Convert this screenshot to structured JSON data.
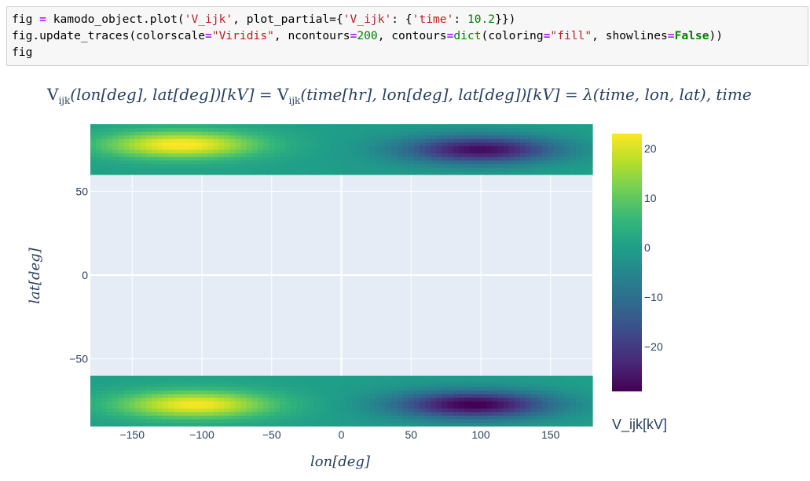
{
  "code_cell": {
    "line1": {
      "a": "fig",
      "b": " = ",
      "c": "kamodo_object.plot(",
      "d": "'V_ijk'",
      "e": ", plot_partial={",
      "f": "'V_ijk'",
      "g": ": {",
      "h": "'time'",
      "i": ": ",
      "j": "10.2",
      "k": "}})"
    },
    "line2": {
      "a": "fig.update_traces(colorscale",
      "b": "=",
      "c": "\"Viridis\"",
      "d": ", ncontours",
      "e": "=",
      "f": "200",
      "g": ", contours",
      "h": "=",
      "i": "dict",
      "j": "(coloring",
      "k": "=",
      "l": "\"fill\"",
      "m": ", showlines",
      "n": "=",
      "o": "False",
      "p": "))"
    },
    "line3": "fig"
  },
  "chart_data": {
    "type": "heatmap",
    "title": {
      "lhs_name": "V",
      "lhs_sub": "ijk",
      "lhs_args": "(lon[deg], lat[deg])[kV]",
      "eq1": " = ",
      "rhs_name": "V",
      "rhs_sub": "ijk",
      "rhs_args": "(time[hr], lon[deg], lat[deg])[kV]",
      "eq2": " = ",
      "lambda": "λ(time, lon, lat), time"
    },
    "xlabel": "lon[deg]",
    "ylabel": "lat[deg]",
    "xlim": [
      -180,
      180
    ],
    "ylim": [
      -90,
      90
    ],
    "x_ticks": [
      -150,
      -100,
      -50,
      0,
      50,
      100,
      150
    ],
    "x_tick_labels": [
      "−150",
      "−100",
      "−50",
      "0",
      "50",
      "100",
      "150"
    ],
    "y_ticks": [
      50,
      0,
      -50
    ],
    "y_tick_labels": [
      "50",
      "0",
      "−50"
    ],
    "data_bands_lat": [
      [
        60,
        90
      ],
      [
        -90,
        -60
      ]
    ],
    "colorscale": "Viridis",
    "colorscale_stops": [
      "#440154",
      "#482878",
      "#3e4989",
      "#31688e",
      "#26828e",
      "#1f9e89",
      "#35b779",
      "#6ece58",
      "#b5de2b",
      "#fde725"
    ],
    "zmin": -29,
    "zmax": 23,
    "colorbar_ticks": [
      20,
      10,
      0,
      -10,
      -20
    ],
    "colorbar_tick_labels": [
      "20",
      "10",
      "0",
      "−10",
      "−20"
    ],
    "colorbar_title": "V_ijk[kV]",
    "north_band": {
      "max": {
        "lon": -115,
        "lat": 78,
        "value": 23
      },
      "min": {
        "lon": 100,
        "lat": 75,
        "value": -27
      }
    },
    "south_band": {
      "max": {
        "lon": -105,
        "lat": -77,
        "value": 22
      },
      "min": {
        "lon": 95,
        "lat": -77,
        "value": -29
      }
    },
    "grid": true,
    "plot_background": "#e5ecf6"
  },
  "colors": {
    "axis_text": "#2a3f5f",
    "grid": "#ffffff",
    "code_background": "#f7f7f7"
  }
}
